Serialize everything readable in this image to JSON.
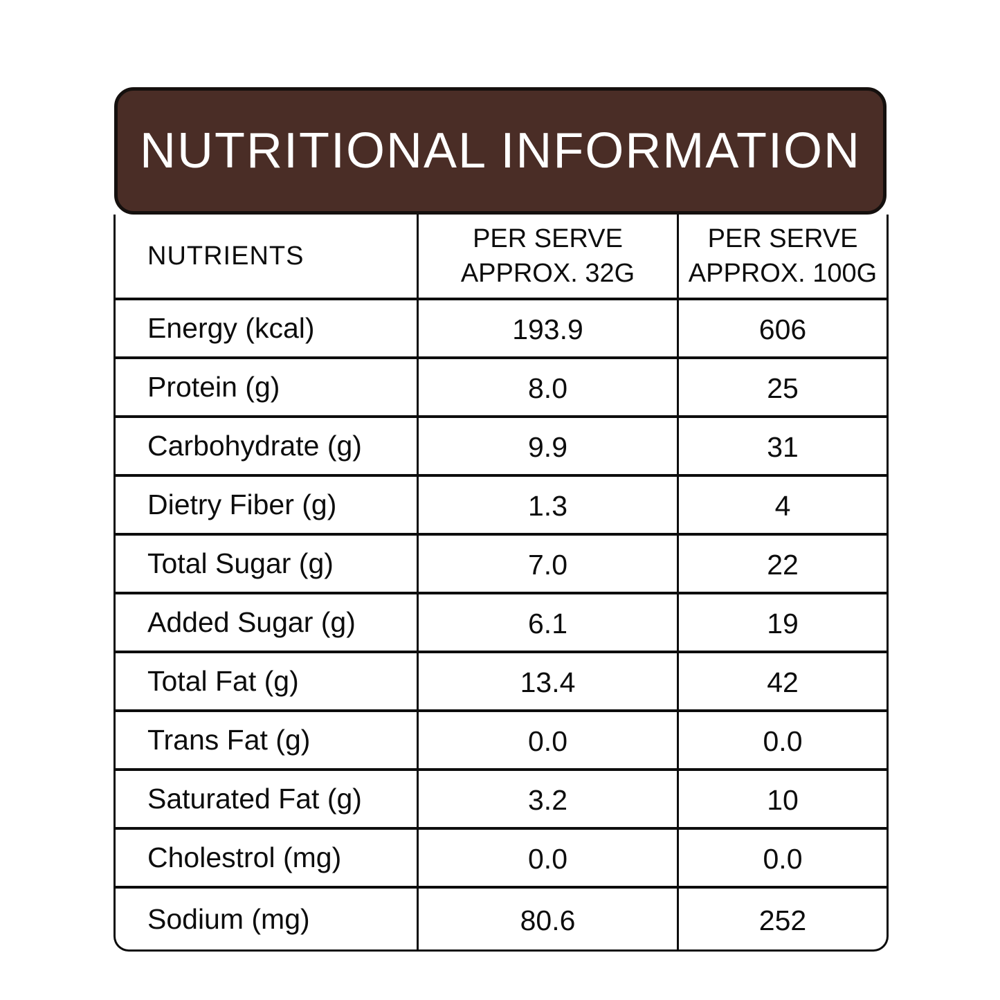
{
  "banner": {
    "title": "NUTRITIONAL INFORMATION",
    "background_color": "#4A2D26",
    "border_color": "#15100e",
    "text_color": "#FFFFFF"
  },
  "table": {
    "header": {
      "nutrients_label": "NUTRIENTS",
      "col_32g": {
        "line1": "PER SERVE",
        "line2": "APPROX. 32G"
      },
      "col_100g": {
        "line1": "PER SERVE",
        "line2": "APPROX. 100G"
      }
    },
    "rows": [
      {
        "nutrient": "Energy (kcal)",
        "per_serve_32g": "193.9",
        "per_serve_100g": "606"
      },
      {
        "nutrient": "Protein (g)",
        "per_serve_32g": "8.0",
        "per_serve_100g": "25"
      },
      {
        "nutrient": "Carbohydrate (g)",
        "per_serve_32g": "9.9",
        "per_serve_100g": "31"
      },
      {
        "nutrient": "Dietry Fiber (g)",
        "per_serve_32g": "1.3",
        "per_serve_100g": "4"
      },
      {
        "nutrient": "Total Sugar (g)",
        "per_serve_32g": "7.0",
        "per_serve_100g": "22"
      },
      {
        "nutrient": "Added Sugar (g)",
        "per_serve_32g": "6.1",
        "per_serve_100g": "19"
      },
      {
        "nutrient": "Total Fat (g)",
        "per_serve_32g": "13.4",
        "per_serve_100g": "42"
      },
      {
        "nutrient": "Trans Fat (g)",
        "per_serve_32g": "0.0",
        "per_serve_100g": "0.0"
      },
      {
        "nutrient": "Saturated Fat (g)",
        "per_serve_32g": "3.2",
        "per_serve_100g": "10"
      },
      {
        "nutrient": "Cholestrol (mg)",
        "per_serve_32g": "0.0",
        "per_serve_100g": "0.0"
      },
      {
        "nutrient": "Sodium (mg)",
        "per_serve_32g": "80.6",
        "per_serve_100g": "252"
      }
    ]
  }
}
